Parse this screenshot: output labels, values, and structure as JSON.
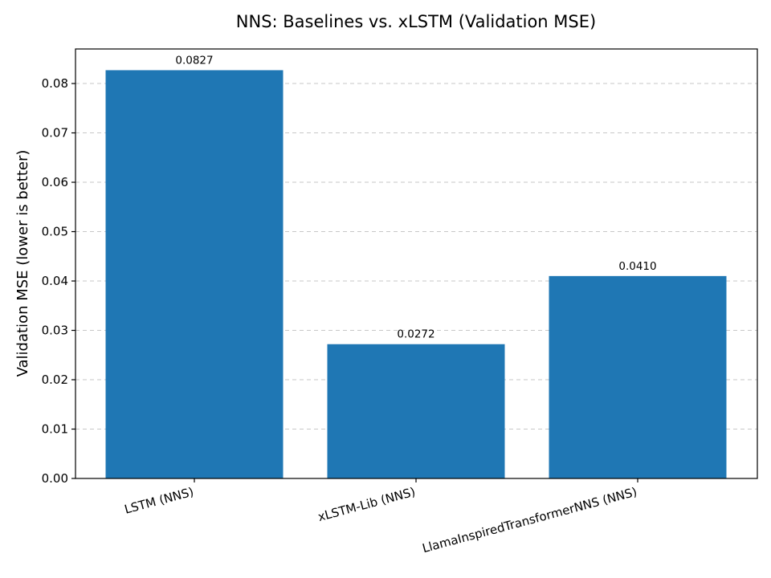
{
  "chart_data": {
    "type": "bar",
    "title": "NNS: Baselines vs. xLSTM (Validation MSE)",
    "xlabel": "",
    "ylabel": "Validation MSE (lower is better)",
    "categories": [
      "LSTM (NNS)",
      "xLSTM-Lib (NNS)",
      "LlamaInspiredTransformerNNS (NNS)"
    ],
    "values": [
      0.0827,
      0.0272,
      0.041
    ],
    "value_labels": [
      "0.0827",
      "0.0272",
      "0.0410"
    ],
    "ylim": [
      0,
      0.087
    ],
    "yticks": [
      0.0,
      0.01,
      0.02,
      0.03,
      0.04,
      0.05,
      0.06,
      0.07,
      0.08
    ],
    "ytick_labels": [
      "0.00",
      "0.01",
      "0.02",
      "0.03",
      "0.04",
      "0.05",
      "0.06",
      "0.07",
      "0.08"
    ],
    "grid": "y-dashed",
    "bar_color": "#1f77b4",
    "xtick_rotation": "angled"
  }
}
